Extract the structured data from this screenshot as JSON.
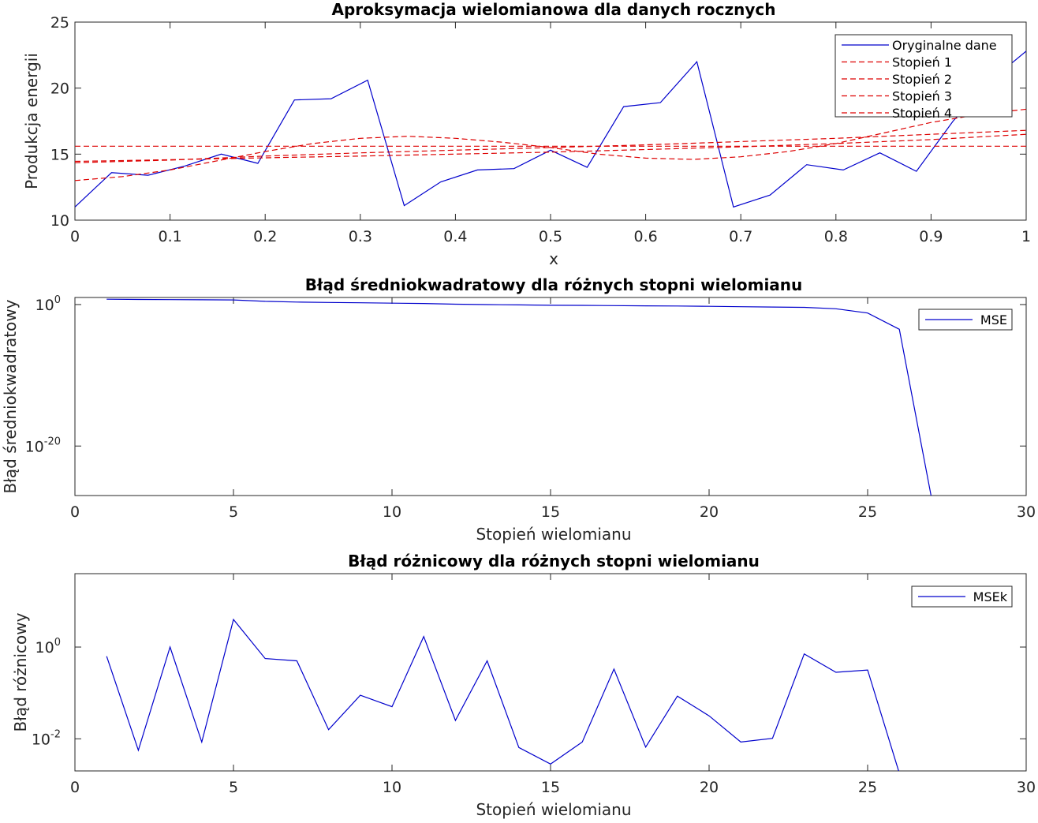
{
  "chart_data": [
    {
      "type": "line",
      "title": "Aproksymacja wielomianowa dla danych rocznych",
      "xlabel": "x",
      "ylabel": "Produkcja energii",
      "xlim": [
        0,
        1
      ],
      "ylim": [
        10,
        25
      ],
      "xticks": [
        0,
        0.1,
        0.2,
        0.3,
        0.4,
        0.5,
        0.6,
        0.7,
        0.8,
        0.9,
        1
      ],
      "xtick_labels": [
        "0",
        "0.1",
        "0.2",
        "0.3",
        "0.4",
        "0.5",
        "0.6",
        "0.7",
        "0.8",
        "0.9",
        "1"
      ],
      "yticks": [
        10,
        15,
        20,
        25
      ],
      "ytick_labels": [
        "10",
        "15",
        "20",
        "25"
      ],
      "grid": false,
      "legend_position": "top-right",
      "series": [
        {
          "name": "Oryginalne dane",
          "color": "#0000cc",
          "style": "solid",
          "x": [
            0,
            0.0385,
            0.0769,
            0.1154,
            0.1538,
            0.1923,
            0.2308,
            0.2692,
            0.3077,
            0.3462,
            0.3846,
            0.4231,
            0.4615,
            0.5,
            0.5385,
            0.5769,
            0.6154,
            0.6538,
            0.6923,
            0.7308,
            0.7692,
            0.8077,
            0.8462,
            0.8846,
            0.9231,
            0.9615,
            1
          ],
          "y": [
            11.0,
            13.6,
            13.4,
            14.1,
            15.0,
            14.3,
            19.1,
            19.2,
            20.6,
            11.1,
            12.9,
            13.8,
            13.9,
            15.3,
            14.0,
            18.6,
            18.9,
            22.0,
            11.0,
            11.9,
            14.2,
            13.8,
            15.1,
            13.7,
            17.5,
            20.5,
            22.8
          ]
        },
        {
          "name": "Stopień 1",
          "color": "#dd0000",
          "style": "dashed",
          "x": [
            0,
            0.1,
            0.2,
            0.3,
            0.4,
            0.5,
            0.6,
            0.7,
            0.8,
            0.9,
            1
          ],
          "y": [
            14.45,
            14.58,
            14.72,
            14.85,
            15.0,
            15.15,
            15.35,
            15.55,
            15.8,
            16.1,
            16.5
          ]
        },
        {
          "name": "Stopień 2",
          "color": "#dd0000",
          "style": "dashed",
          "x": [
            0,
            0.1,
            0.2,
            0.3,
            0.4,
            0.5,
            0.6,
            0.7,
            0.8,
            0.9,
            1
          ],
          "y": [
            14.35,
            14.55,
            14.85,
            15.1,
            15.3,
            15.5,
            15.7,
            15.95,
            16.2,
            16.5,
            16.8
          ]
        },
        {
          "name": "Stopień 3",
          "color": "#dd0000",
          "style": "dashed",
          "x": [
            0,
            0.1,
            0.2,
            0.3,
            0.4,
            0.5,
            0.6,
            0.7,
            0.8,
            0.9,
            1
          ],
          "y": [
            15.6,
            15.6,
            15.6,
            15.6,
            15.6,
            15.6,
            15.6,
            15.6,
            15.6,
            15.6,
            15.6
          ]
        },
        {
          "name": "Stopień 4",
          "color": "#dd0000",
          "style": "dashed",
          "x": [
            0,
            0.05,
            0.1,
            0.15,
            0.2,
            0.25,
            0.3,
            0.35,
            0.4,
            0.45,
            0.5,
            0.55,
            0.6,
            0.65,
            0.7,
            0.75,
            0.8,
            0.85,
            0.9,
            0.95,
            1
          ],
          "y": [
            13.0,
            13.3,
            13.8,
            14.5,
            15.2,
            15.8,
            16.2,
            16.35,
            16.2,
            15.9,
            15.5,
            15.0,
            14.7,
            14.6,
            14.8,
            15.2,
            15.8,
            16.6,
            17.4,
            18.0,
            18.4
          ]
        }
      ]
    },
    {
      "type": "line",
      "title": "Błąd średniokwadratowy dla różnych stopni wielomianu",
      "xlabel": "Stopień wielomianu",
      "ylabel": "Błąd średniokwadratowy",
      "yscale": "log",
      "xlim": [
        0,
        30
      ],
      "ylim_log10": [
        -27,
        1
      ],
      "xticks": [
        0,
        5,
        10,
        15,
        20,
        25,
        30
      ],
      "xtick_labels": [
        "0",
        "5",
        "10",
        "15",
        "20",
        "25",
        "30"
      ],
      "ytick_log10": [
        0,
        -20
      ],
      "ytick_base": "10",
      "ytick_exponents": [
        "0",
        "-20"
      ],
      "grid": false,
      "legend_position": "top-right",
      "series": [
        {
          "name": "MSE",
          "color": "#0000cc",
          "style": "solid",
          "x": [
            1,
            2,
            3,
            4,
            5,
            6,
            7,
            8,
            9,
            10,
            11,
            12,
            13,
            14,
            15,
            16,
            17,
            18,
            19,
            20,
            21,
            22,
            23,
            24,
            25,
            26,
            27
          ],
          "y_log10": [
            0.75,
            0.72,
            0.7,
            0.68,
            0.65,
            0.45,
            0.35,
            0.3,
            0.25,
            0.2,
            0.15,
            0.05,
            0.0,
            -0.05,
            -0.1,
            -0.12,
            -0.15,
            -0.18,
            -0.2,
            -0.25,
            -0.3,
            -0.35,
            -0.4,
            -0.6,
            -1.2,
            -3.5,
            -27.0
          ]
        }
      ]
    },
    {
      "type": "line",
      "title": "Błąd różnicowy dla różnych stopni wielomianu",
      "xlabel": "Stopień wielomianu",
      "ylabel": "Błąd różnicowy",
      "yscale": "log",
      "xlim": [
        0,
        30
      ],
      "ylim_log10": [
        -2.7,
        1.6
      ],
      "xticks": [
        0,
        5,
        10,
        15,
        20,
        25,
        30
      ],
      "xtick_labels": [
        "0",
        "5",
        "10",
        "15",
        "20",
        "25",
        "30"
      ],
      "ytick_log10": [
        0,
        -2
      ],
      "ytick_base": "10",
      "ytick_exponents": [
        "0",
        "-2"
      ],
      "grid": false,
      "legend_position": "top-right",
      "series": [
        {
          "name": "MSEk",
          "color": "#0000cc",
          "style": "solid",
          "x": [
            1,
            2,
            3,
            4,
            5,
            6,
            7,
            8,
            9,
            10,
            11,
            12,
            13,
            14,
            15,
            16,
            17,
            18,
            19,
            20,
            21,
            22,
            23,
            24,
            25,
            26
          ],
          "y_log10": [
            -0.2,
            -2.25,
            0.0,
            -2.07,
            0.6,
            -0.25,
            -0.3,
            -1.8,
            -1.05,
            -1.3,
            0.23,
            -1.6,
            -0.3,
            -2.19,
            -2.55,
            -2.07,
            -0.48,
            -2.18,
            -1.07,
            -1.5,
            -2.07,
            -1.99,
            -0.15,
            -0.55,
            -0.5,
            -2.75
          ]
        }
      ]
    }
  ]
}
